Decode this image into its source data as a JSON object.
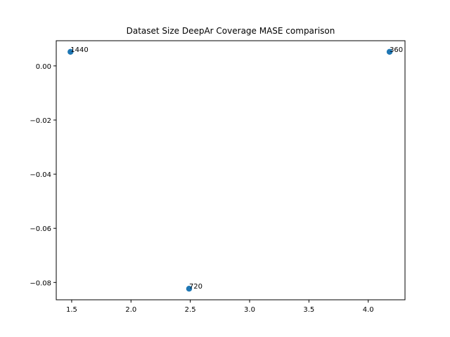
{
  "chart_data": {
    "type": "scatter",
    "title": "Dataset Size DeepAr Coverage MASE comparison",
    "xlabel": "",
    "ylabel": "",
    "xlim": [
      1.37,
      4.31
    ],
    "ylim": [
      -0.0864,
      0.0093
    ],
    "xticks": [
      1.5,
      2.0,
      2.5,
      3.0,
      3.5,
      4.0
    ],
    "xtick_labels": [
      "1.5",
      "2.0",
      "2.5",
      "3.0",
      "3.5",
      "4.0"
    ],
    "yticks": [
      0.0,
      -0.02,
      -0.04,
      -0.06,
      -0.08
    ],
    "ytick_labels": [
      "0.00",
      "−0.02",
      "−0.04",
      "−0.06",
      "−0.08"
    ],
    "grid": false,
    "points": [
      {
        "x": 1.49,
        "y": 0.0052,
        "label": "1440"
      },
      {
        "x": 2.49,
        "y": -0.0823,
        "label": "720"
      },
      {
        "x": 4.18,
        "y": 0.0052,
        "label": "360"
      }
    ],
    "marker_color": "#1f77b4"
  }
}
